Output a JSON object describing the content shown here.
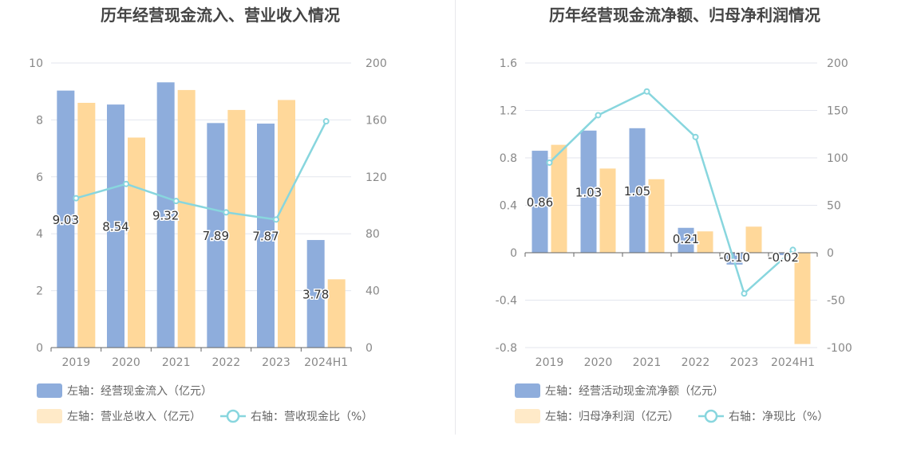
{
  "colors": {
    "bar_primary": "#8eaddc",
    "bar_secondary": "#ffd89a",
    "line": "#88d6de",
    "title": "#444444",
    "axis_text": "#888888",
    "grid": "#e3e6ee",
    "label": "#333333"
  },
  "chart_data": [
    {
      "type": "bar",
      "title": "历年经营现金流入、营业收入情况",
      "categories": [
        "2019",
        "2020",
        "2021",
        "2022",
        "2023",
        "2024H1"
      ],
      "left_axis": {
        "ticks": [
          "0",
          "2",
          "4",
          "6",
          "8",
          "10"
        ],
        "ylim": [
          0,
          10
        ]
      },
      "right_axis": {
        "ticks": [
          "0",
          "40",
          "80",
          "120",
          "160",
          "200"
        ],
        "ylim": [
          0,
          200
        ]
      },
      "series": [
        {
          "name": "左轴：经营现金流入（亿元）",
          "kind": "bar",
          "axis": "left",
          "color_key": "bar_primary",
          "values": [
            9.03,
            8.54,
            9.32,
            7.89,
            7.87,
            3.78
          ],
          "labels": [
            "9.03",
            "8.54",
            "9.32",
            "7.89",
            "7.87",
            "3.78"
          ]
        },
        {
          "name": "左轴：营业总收入（亿元）",
          "kind": "bar",
          "axis": "left",
          "color_key": "bar_secondary",
          "values": [
            8.6,
            7.38,
            9.05,
            8.35,
            8.7,
            2.4
          ]
        },
        {
          "name": "右轴：营收现金比（%）",
          "kind": "line",
          "axis": "right",
          "color_key": "line",
          "values": [
            105,
            115,
            103,
            95,
            90,
            159
          ]
        }
      ],
      "legend_rows": [
        [
          {
            "label": "左轴：经营现金流入（亿元）",
            "shape": "rect",
            "color_key": "bar_primary"
          }
        ],
        [
          {
            "label": "左轴：营业总收入（亿元）",
            "shape": "rect",
            "color_key": "bar_secondary"
          },
          {
            "label": "右轴：营收现金比（%）",
            "shape": "line",
            "color_key": "line"
          }
        ]
      ],
      "legend_position": "bottom-left",
      "grid": true
    },
    {
      "type": "bar",
      "title": "历年经营现金流净额、归母净利润情况",
      "categories": [
        "2019",
        "2020",
        "2021",
        "2022",
        "2023",
        "2024H1"
      ],
      "left_axis": {
        "ticks": [
          "-0.8",
          "-0.4",
          "0",
          "0.4",
          "0.8",
          "1.2",
          "1.6"
        ],
        "ylim": [
          -0.8,
          1.6
        ]
      },
      "right_axis": {
        "ticks": [
          "-100",
          "-50",
          "0",
          "50",
          "100",
          "150",
          "200"
        ],
        "ylim": [
          -100,
          200
        ]
      },
      "series": [
        {
          "name": "左轴：经营活动现金流净额（亿元）",
          "kind": "bar",
          "axis": "left",
          "color_key": "bar_primary",
          "values": [
            0.86,
            1.03,
            1.05,
            0.21,
            -0.1,
            -0.02
          ],
          "labels": [
            "0.86",
            "1.03",
            "1.05",
            "0.21",
            "-0.10",
            "-0.02"
          ]
        },
        {
          "name": "左轴：归母净利润（亿元）",
          "kind": "bar",
          "axis": "left",
          "color_key": "bar_secondary",
          "values": [
            0.91,
            0.71,
            0.62,
            0.18,
            0.22,
            -0.77
          ]
        },
        {
          "name": "右轴：净现比（%）",
          "kind": "line",
          "axis": "right",
          "color_key": "line",
          "values": [
            95,
            145,
            170,
            122,
            -43,
            3
          ]
        }
      ],
      "legend_rows": [
        [
          {
            "label": "左轴：经营活动现金流净额（亿元）",
            "shape": "rect",
            "color_key": "bar_primary"
          }
        ],
        [
          {
            "label": "左轴：归母净利润（亿元）",
            "shape": "rect",
            "color_key": "bar_secondary"
          },
          {
            "label": "右轴：净现比（%）",
            "shape": "line",
            "color_key": "line"
          }
        ]
      ],
      "legend_position": "bottom-left",
      "grid": true
    }
  ]
}
